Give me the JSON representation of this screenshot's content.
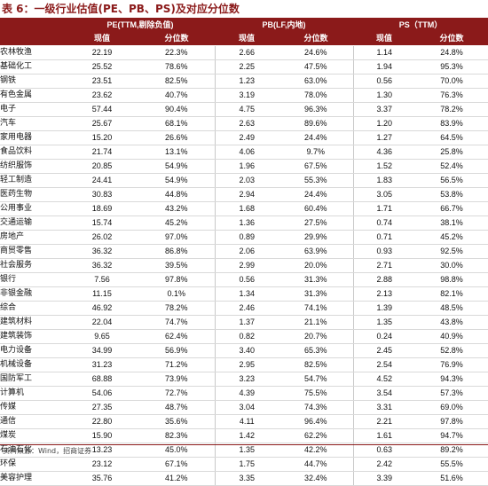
{
  "title": "表 6：一级行业估值(PE、PB、PS)及对应分位数",
  "header": {
    "groups": [
      "PE(TTM,剔除负值)",
      "PB(LF,内地)",
      "PS（TTM）"
    ],
    "sub": [
      "现值",
      "分位数",
      "现值",
      "分位数",
      "现值",
      "分位数"
    ]
  },
  "rows": [
    {
      "industry": "农林牧渔",
      "pe": "22.19",
      "pe_pct": "22.3%",
      "pb": "2.66",
      "pb_pct": "24.6%",
      "ps": "1.14",
      "ps_pct": "24.8%"
    },
    {
      "industry": "基础化工",
      "pe": "25.52",
      "pe_pct": "78.6%",
      "pb": "2.25",
      "pb_pct": "47.5%",
      "ps": "1.94",
      "ps_pct": "95.3%"
    },
    {
      "industry": "钢铁",
      "pe": "23.51",
      "pe_pct": "82.5%",
      "pb": "1.23",
      "pb_pct": "63.0%",
      "ps": "0.56",
      "ps_pct": "70.0%"
    },
    {
      "industry": "有色金属",
      "pe": "23.62",
      "pe_pct": "40.7%",
      "pb": "3.19",
      "pb_pct": "78.0%",
      "ps": "1.30",
      "ps_pct": "76.3%"
    },
    {
      "industry": "电子",
      "pe": "57.44",
      "pe_pct": "90.4%",
      "pb": "4.75",
      "pb_pct": "96.3%",
      "ps": "3.37",
      "ps_pct": "78.2%"
    },
    {
      "industry": "汽车",
      "pe": "25.67",
      "pe_pct": "68.1%",
      "pb": "2.63",
      "pb_pct": "89.6%",
      "ps": "1.20",
      "ps_pct": "83.9%"
    },
    {
      "industry": "家用电器",
      "pe": "15.20",
      "pe_pct": "26.6%",
      "pb": "2.49",
      "pb_pct": "24.4%",
      "ps": "1.27",
      "ps_pct": "64.5%"
    },
    {
      "industry": "食品饮料",
      "pe": "21.74",
      "pe_pct": "13.1%",
      "pb": "4.06",
      "pb_pct": "9.7%",
      "ps": "4.36",
      "ps_pct": "25.8%"
    },
    {
      "industry": "纺织服饰",
      "pe": "20.85",
      "pe_pct": "54.9%",
      "pb": "1.96",
      "pb_pct": "67.5%",
      "ps": "1.52",
      "ps_pct": "52.4%"
    },
    {
      "industry": "轻工制造",
      "pe": "24.41",
      "pe_pct": "54.9%",
      "pb": "2.03",
      "pb_pct": "55.3%",
      "ps": "1.83",
      "ps_pct": "56.5%"
    },
    {
      "industry": "医药生物",
      "pe": "30.83",
      "pe_pct": "44.8%",
      "pb": "2.94",
      "pb_pct": "24.4%",
      "ps": "3.05",
      "ps_pct": "53.8%"
    },
    {
      "industry": "公用事业",
      "pe": "18.69",
      "pe_pct": "43.2%",
      "pb": "1.68",
      "pb_pct": "60.4%",
      "ps": "1.71",
      "ps_pct": "66.7%"
    },
    {
      "industry": "交通运输",
      "pe": "15.74",
      "pe_pct": "45.2%",
      "pb": "1.36",
      "pb_pct": "27.5%",
      "ps": "0.74",
      "ps_pct": "38.1%"
    },
    {
      "industry": "房地产",
      "pe": "26.02",
      "pe_pct": "97.0%",
      "pb": "0.89",
      "pb_pct": "29.9%",
      "ps": "0.71",
      "ps_pct": "45.2%"
    },
    {
      "industry": "商贸零售",
      "pe": "36.32",
      "pe_pct": "86.8%",
      "pb": "2.06",
      "pb_pct": "63.9%",
      "ps": "0.93",
      "ps_pct": "92.5%"
    },
    {
      "industry": "社会服务",
      "pe": "36.32",
      "pe_pct": "39.5%",
      "pb": "2.99",
      "pb_pct": "20.0%",
      "ps": "2.71",
      "ps_pct": "30.0%"
    },
    {
      "industry": "银行",
      "pe": "7.56",
      "pe_pct": "97.8%",
      "pb": "0.56",
      "pb_pct": "31.3%",
      "ps": "2.88",
      "ps_pct": "98.8%"
    },
    {
      "industry": "非银金融",
      "pe": "11.15",
      "pe_pct": "0.1%",
      "pb": "1.34",
      "pb_pct": "31.3%",
      "ps": "2.13",
      "ps_pct": "82.1%"
    },
    {
      "industry": "综合",
      "pe": "46.92",
      "pe_pct": "78.2%",
      "pb": "2.46",
      "pb_pct": "74.1%",
      "ps": "1.39",
      "ps_pct": "48.5%"
    },
    {
      "industry": "建筑材料",
      "pe": "22.04",
      "pe_pct": "74.7%",
      "pb": "1.37",
      "pb_pct": "21.1%",
      "ps": "1.35",
      "ps_pct": "43.8%"
    },
    {
      "industry": "建筑装饰",
      "pe": "9.65",
      "pe_pct": "62.4%",
      "pb": "0.82",
      "pb_pct": "20.7%",
      "ps": "0.24",
      "ps_pct": "40.9%"
    },
    {
      "industry": "电力设备",
      "pe": "34.99",
      "pe_pct": "56.9%",
      "pb": "3.40",
      "pb_pct": "65.3%",
      "ps": "2.45",
      "ps_pct": "52.8%"
    },
    {
      "industry": "机械设备",
      "pe": "31.23",
      "pe_pct": "71.2%",
      "pb": "2.95",
      "pb_pct": "82.5%",
      "ps": "2.54",
      "ps_pct": "76.9%"
    },
    {
      "industry": "国防军工",
      "pe": "68.88",
      "pe_pct": "73.9%",
      "pb": "3.23",
      "pb_pct": "54.7%",
      "ps": "4.52",
      "ps_pct": "94.3%"
    },
    {
      "industry": "计算机",
      "pe": "54.06",
      "pe_pct": "72.7%",
      "pb": "4.39",
      "pb_pct": "75.5%",
      "ps": "3.54",
      "ps_pct": "57.3%"
    },
    {
      "industry": "传媒",
      "pe": "27.35",
      "pe_pct": "48.7%",
      "pb": "3.04",
      "pb_pct": "74.3%",
      "ps": "3.31",
      "ps_pct": "69.0%"
    },
    {
      "industry": "通信",
      "pe": "22.80",
      "pe_pct": "35.6%",
      "pb": "4.11",
      "pb_pct": "96.4%",
      "ps": "2.21",
      "ps_pct": "97.8%"
    },
    {
      "industry": "煤炭",
      "pe": "15.90",
      "pe_pct": "82.3%",
      "pb": "1.42",
      "pb_pct": "62.2%",
      "ps": "1.61",
      "ps_pct": "94.7%"
    },
    {
      "industry": "石油石化",
      "pe": "13.23",
      "pe_pct": "45.0%",
      "pb": "1.35",
      "pb_pct": "42.2%",
      "ps": "0.63",
      "ps_pct": "89.2%"
    },
    {
      "industry": "环保",
      "pe": "23.12",
      "pe_pct": "67.1%",
      "pb": "1.75",
      "pb_pct": "44.7%",
      "ps": "2.42",
      "ps_pct": "55.5%"
    },
    {
      "industry": "美容护理",
      "pe": "35.76",
      "pe_pct": "41.2%",
      "pb": "3.35",
      "pb_pct": "32.4%",
      "ps": "3.39",
      "ps_pct": "51.6%"
    }
  ],
  "source": "资料来源：Wind，招商证券",
  "colors": {
    "header_bg": "#8B1A1A",
    "title": "#8B1A1A"
  }
}
